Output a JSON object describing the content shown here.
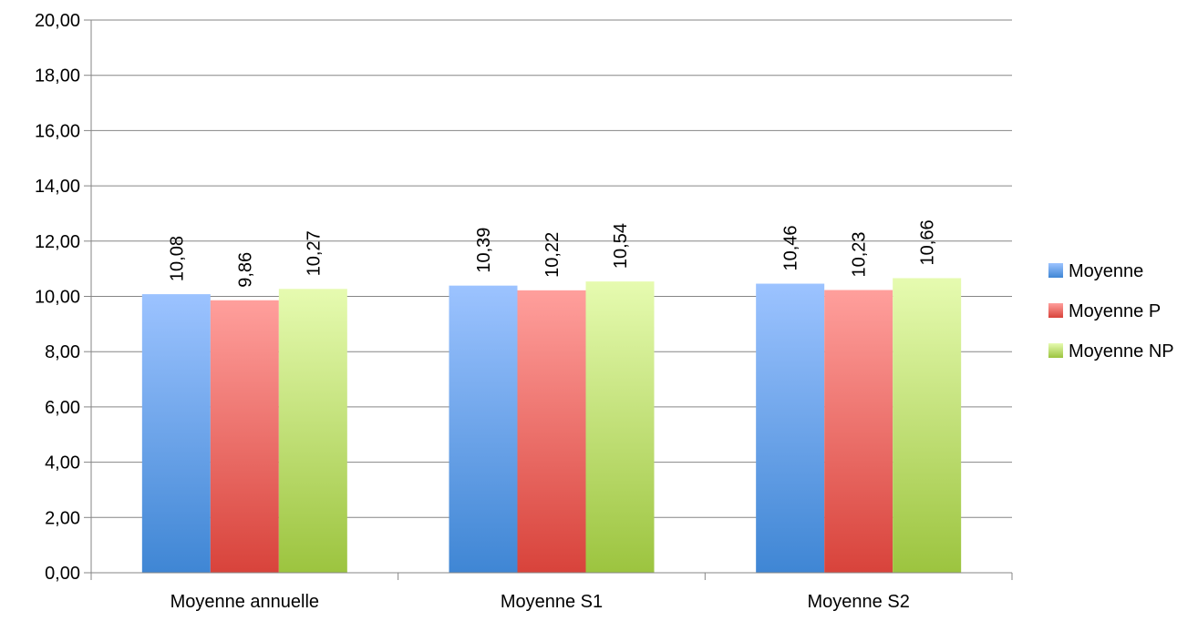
{
  "chart_data": {
    "type": "bar",
    "categories": [
      "Moyenne annuelle",
      "Moyenne S1",
      "Moyenne S2"
    ],
    "series": [
      {
        "name": "Moyenne",
        "values": [
          10.08,
          10.39,
          10.46
        ],
        "labels": [
          "10,08",
          "10,39",
          "10,46"
        ],
        "color_top": "#9cc3ff",
        "color_bottom": "#3f86d4"
      },
      {
        "name": "Moyenne P",
        "values": [
          9.86,
          10.22,
          10.23
        ],
        "labels": [
          "9,86",
          "10,22",
          "10,23"
        ],
        "color_top": "#ff9f9c",
        "color_bottom": "#d8433b"
      },
      {
        "name": "Moyenne NP",
        "values": [
          10.27,
          10.54,
          10.66
        ],
        "labels": [
          "10,27",
          "10,54",
          "10,66"
        ],
        "color_top": "#e6fbb0",
        "color_bottom": "#9cc43f"
      }
    ],
    "ylim": [
      0,
      20
    ],
    "yticks": [
      0,
      2,
      4,
      6,
      8,
      10,
      12,
      14,
      16,
      18,
      20
    ],
    "ytick_labels": [
      "0,00",
      "2,00",
      "4,00",
      "6,00",
      "8,00",
      "10,00",
      "12,00",
      "14,00",
      "16,00",
      "18,00",
      "20,00"
    ],
    "grid": true,
    "legend_position": "right",
    "gridline_color": "#868686",
    "axis_color": "#868686"
  }
}
